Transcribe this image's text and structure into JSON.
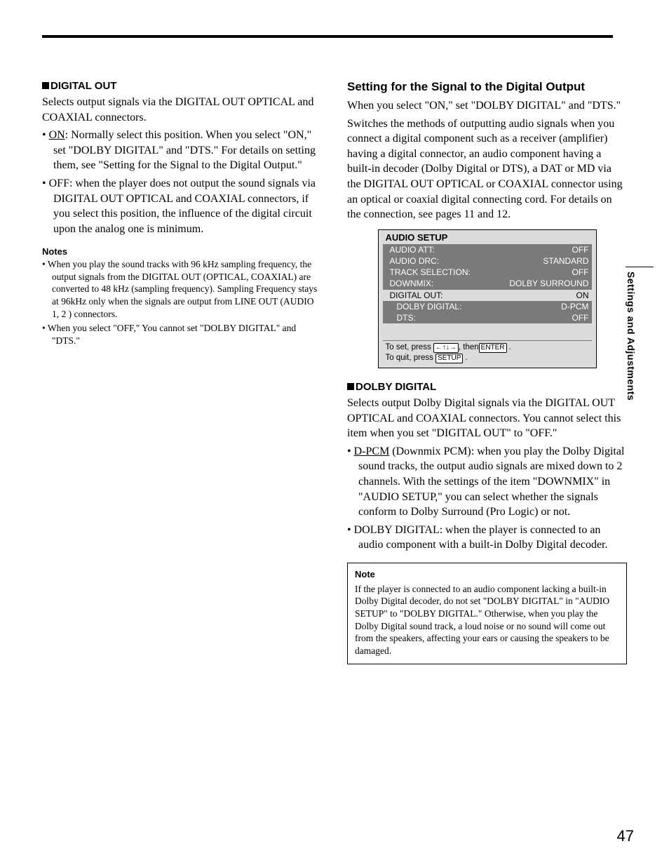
{
  "page_number": "47",
  "side_tab": "Settings and Adjustments",
  "left": {
    "digital_out": {
      "heading": "DIGITAL OUT",
      "intro": "Selects output signals via the DIGITAL OUT OPTICAL and COAXIAL connectors.",
      "bullets": [
        {
          "lead_underline": "ON",
          "text": ": Normally select this position.  When you select \"ON,\" set \"DOLBY DIGITAL\" and \"DTS.\"  For details on setting them, see \"Setting for the Signal to the Digital Output.\""
        },
        {
          "lead": "OFF",
          "text": ": when the player does not output the sound signals via DIGITAL OUT OPTICAL and COAXIAL connectors, if you select this position, the influence of the digital circuit upon the analog one is minimum."
        }
      ],
      "notes_heading": "Notes",
      "notes": [
        "When you play the sound tracks with 96 kHz sampling frequency, the output signals from the DIGITAL OUT (OPTICAL, COAXIAL) are converted to 48 kHz (sampling frequency). Sampling Frequency stays at 96kHz only when the signals are output from LINE OUT (AUDIO 1, 2 ) connectors.",
        "When you select \"OFF,\" You cannot set \"DOLBY DIGITAL\" and \"DTS.\""
      ]
    }
  },
  "right": {
    "setting": {
      "heading": "Setting for the Signal to the Digital Output",
      "intro1": "When you select \"ON,\" set \"DOLBY DIGITAL\" and \"DTS.\"",
      "intro2": "Switches the methods of outputting audio signals when you connect a digital component such as a receiver (amplifier) having a digital connector, an audio component having a built-in decoder (Dolby Digital or DTS), a DAT or MD via the DIGITAL OUT OPTICAL or COAXIAL connector using an optical or coaxial digital connecting cord.  For details on the connection, see pages 11 and 12."
    },
    "osd": {
      "title": "AUDIO SETUP",
      "rows": [
        {
          "label": "AUDIO ATT:",
          "value": "OFF",
          "hl": true,
          "sub": false
        },
        {
          "label": "AUDIO DRC:",
          "value": "STANDARD",
          "hl": true,
          "sub": false
        },
        {
          "label": "TRACK SELECTION:",
          "value": "OFF",
          "hl": true,
          "sub": false
        },
        {
          "label": "DOWNMIX:",
          "value": "DOLBY SURROUND",
          "hl": true,
          "sub": false
        },
        {
          "label": "DIGITAL OUT:",
          "value": "ON",
          "hl": false,
          "sub": false
        },
        {
          "label": "DOLBY DIGITAL:",
          "value": "D-PCM",
          "hl": true,
          "sub": true
        },
        {
          "label": "DTS:",
          "value": "OFF",
          "hl": true,
          "sub": true
        }
      ],
      "footer_line1_a": "To set, press ",
      "footer_line1_arrows": "←↑↓→",
      "footer_line1_b": ", then",
      "footer_line1_key": "ENTER",
      "footer_line1_c": " .",
      "footer_line2_a": "To quit, press ",
      "footer_line2_key": "SETUP",
      "footer_line2_b": " ."
    },
    "dolby": {
      "heading": "DOLBY DIGITAL",
      "intro": "Selects output Dolby Digital signals via the DIGITAL OUT OPTICAL and COAXIAL connectors.  You cannot select this item when you set \"DIGITAL OUT\" to \"OFF.\"",
      "bullets": [
        {
          "lead_underline": "D-PCM",
          "text": " (Downmix PCM): when you play the Dolby Digital sound tracks, the output audio signals are mixed down to 2 channels.  With the settings of the item \"DOWNMIX\" in \"AUDIO SETUP,\"  you can select whether the signals conform to Dolby Surround (Pro Logic) or not."
        },
        {
          "lead": "DOLBY DIGITAL",
          "text": ":  when the player is connected to an audio component with a built-in Dolby Digital decoder."
        }
      ],
      "note": {
        "title": "Note",
        "text": "If the player is connected to an audio component lacking a built-in Dolby Digital  decoder, do not set \"DOLBY DIGITAL\" in \"AUDIO SETUP\" to \"DOLBY DIGITAL.\" Otherwise, when you play the Dolby Digital sound track, a loud noise or no sound will come out from the speakers, affecting your ears or causing the speakers to be damaged."
      }
    }
  }
}
